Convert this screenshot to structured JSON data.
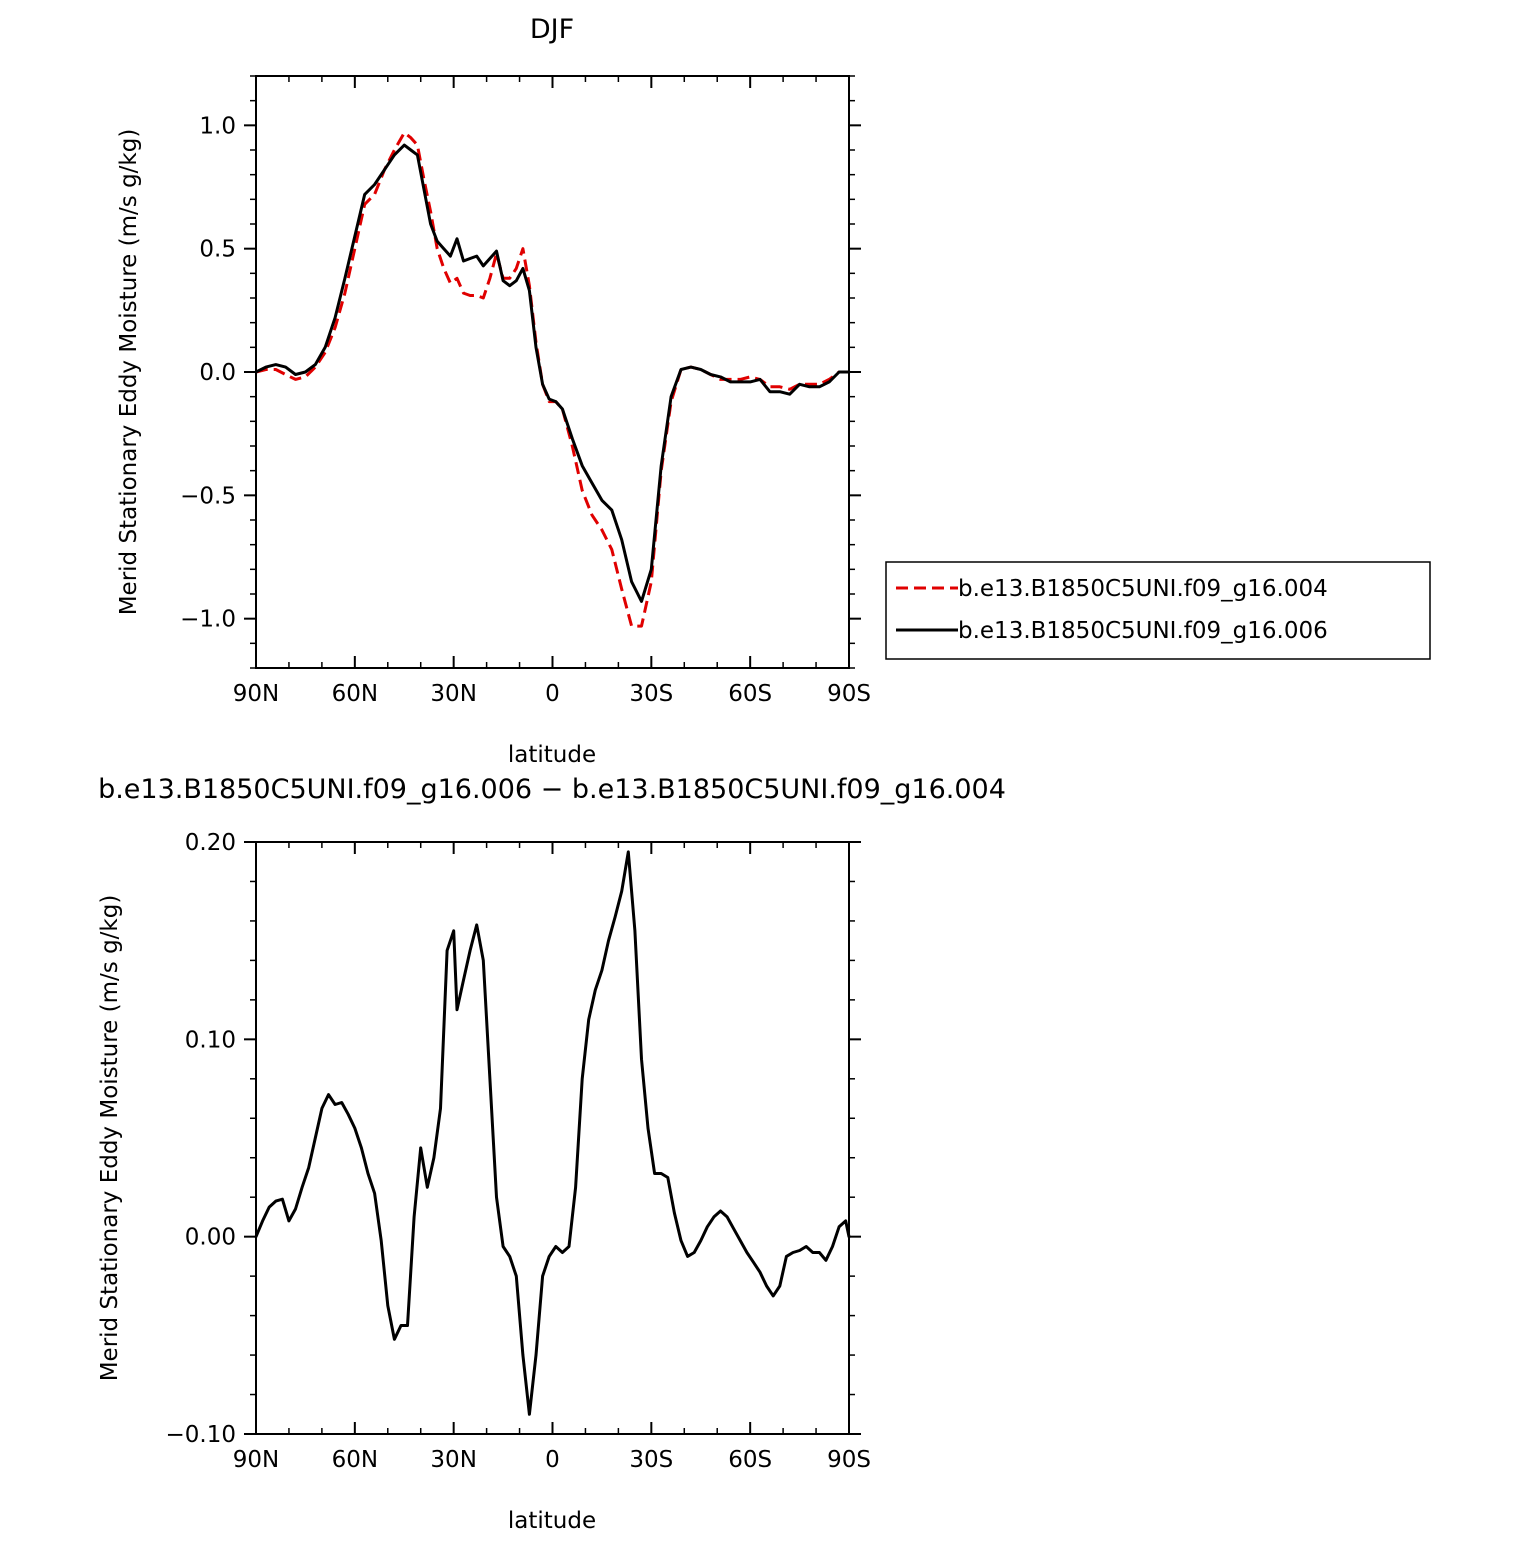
{
  "chart_data": [
    {
      "type": "line",
      "title": "DJF",
      "xlabel": "latitude",
      "ylabel": "Merid Stationary Eddy Moisture (m/s g/kg)",
      "xlim": [
        90,
        -90
      ],
      "ylim": [
        -1.2,
        1.2
      ],
      "x_ticks": [
        90,
        60,
        30,
        0,
        -30,
        -60,
        -90
      ],
      "x_tick_labels": [
        "90N",
        "60N",
        "30N",
        "0",
        "30S",
        "60S",
        "90S"
      ],
      "y_ticks": [
        1.0,
        0.5,
        0.0,
        -0.5,
        -1.0
      ],
      "y_tick_labels": [
        "1.0",
        "0.5",
        "0.0",
        "−0.5",
        "−1.0"
      ],
      "legend_position": "right",
      "series": [
        {
          "name": "b.e13.B1850C5UNI.f09_g16.004",
          "color": "#e00000",
          "dash": "dashed",
          "x": [
            90,
            87,
            84,
            81,
            78,
            75,
            72,
            69,
            66,
            63,
            60,
            57,
            54,
            51,
            48,
            45,
            43,
            41,
            39,
            37,
            35,
            33,
            31,
            29,
            27,
            25,
            23,
            21,
            19,
            17,
            15,
            13,
            11,
            9,
            7,
            5,
            3,
            1,
            -1,
            -3,
            -6,
            -9,
            -12,
            -15,
            -18,
            -21,
            -24,
            -27,
            -30,
            -33,
            -36,
            -39,
            -42,
            -45,
            -48,
            -51,
            -54,
            -57,
            -60,
            -63,
            -66,
            -69,
            -72,
            -75,
            -78,
            -81,
            -84,
            -87,
            -90
          ],
          "y": [
            0.0,
            0.01,
            0.01,
            -0.01,
            -0.03,
            -0.02,
            0.02,
            0.08,
            0.18,
            0.32,
            0.5,
            0.68,
            0.72,
            0.82,
            0.9,
            0.97,
            0.95,
            0.92,
            0.78,
            0.65,
            0.5,
            0.42,
            0.36,
            0.38,
            0.32,
            0.31,
            0.31,
            0.3,
            0.38,
            0.48,
            0.38,
            0.38,
            0.42,
            0.5,
            0.35,
            0.12,
            -0.05,
            -0.12,
            -0.12,
            -0.15,
            -0.3,
            -0.48,
            -0.58,
            -0.64,
            -0.72,
            -0.88,
            -1.03,
            -1.03,
            -0.85,
            -0.4,
            -0.12,
            0.01,
            0.02,
            0.01,
            -0.01,
            -0.03,
            -0.03,
            -0.03,
            -0.02,
            -0.03,
            -0.06,
            -0.06,
            -0.07,
            -0.05,
            -0.05,
            -0.05,
            -0.03,
            0.0,
            0.0
          ]
        },
        {
          "name": "b.e13.B1850C5UNI.f09_g16.006",
          "color": "#000000",
          "dash": "solid",
          "x": [
            90,
            87,
            84,
            81,
            78,
            75,
            72,
            69,
            66,
            63,
            60,
            57,
            54,
            51,
            48,
            45,
            43,
            41,
            39,
            37,
            35,
            33,
            31,
            29,
            27,
            25,
            23,
            21,
            19,
            17,
            15,
            13,
            11,
            9,
            7,
            5,
            3,
            1,
            -1,
            -3,
            -6,
            -9,
            -12,
            -15,
            -18,
            -21,
            -24,
            -27,
            -30,
            -33,
            -36,
            -39,
            -42,
            -45,
            -48,
            -51,
            -54,
            -57,
            -60,
            -63,
            -66,
            -69,
            -72,
            -75,
            -78,
            -81,
            -84,
            -87,
            -90
          ],
          "y": [
            0.0,
            0.02,
            0.03,
            0.02,
            -0.01,
            0.0,
            0.03,
            0.1,
            0.22,
            0.38,
            0.55,
            0.72,
            0.76,
            0.82,
            0.88,
            0.92,
            0.9,
            0.88,
            0.74,
            0.6,
            0.53,
            0.5,
            0.47,
            0.54,
            0.45,
            0.46,
            0.47,
            0.43,
            0.46,
            0.49,
            0.37,
            0.35,
            0.37,
            0.42,
            0.33,
            0.1,
            -0.05,
            -0.11,
            -0.12,
            -0.15,
            -0.27,
            -0.38,
            -0.45,
            -0.52,
            -0.56,
            -0.68,
            -0.85,
            -0.93,
            -0.8,
            -0.38,
            -0.1,
            0.01,
            0.02,
            0.01,
            -0.01,
            -0.02,
            -0.04,
            -0.04,
            -0.04,
            -0.03,
            -0.08,
            -0.08,
            -0.09,
            -0.05,
            -0.06,
            -0.06,
            -0.04,
            0.0,
            0.0
          ]
        }
      ]
    },
    {
      "type": "line",
      "title": "b.e13.B1850C5UNI.f09_g16.006 − b.e13.B1850C5UNI.f09_g16.004",
      "xlabel": "latitude",
      "ylabel": "Merid Stationary Eddy Moisture (m/s g/kg)",
      "xlim": [
        90,
        -90
      ],
      "ylim": [
        -0.1,
        0.2
      ],
      "x_ticks": [
        90,
        60,
        30,
        0,
        -30,
        -60,
        -90
      ],
      "x_tick_labels": [
        "90N",
        "60N",
        "30N",
        "0",
        "30S",
        "60S",
        "90S"
      ],
      "y_ticks": [
        0.2,
        0.1,
        0.0,
        -0.1
      ],
      "y_tick_labels": [
        "0.20",
        "0.10",
        "0.00",
        "−0.10"
      ],
      "series": [
        {
          "color": "#000000",
          "dash": "solid",
          "x": [
            90,
            88,
            86,
            84,
            82,
            80,
            78,
            76,
            74,
            72,
            70,
            68,
            66,
            64,
            62,
            60,
            58,
            56,
            54,
            52,
            50,
            48,
            46,
            44,
            42,
            40,
            38,
            36,
            34,
            32,
            30,
            29,
            27,
            25,
            23,
            21,
            19,
            17,
            15,
            13,
            11,
            9,
            7,
            5,
            3,
            1,
            -1,
            -3,
            -5,
            -7,
            -9,
            -11,
            -13,
            -15,
            -17,
            -19,
            -21,
            -23,
            -25,
            -27,
            -29,
            -31,
            -33,
            -35,
            -37,
            -39,
            -41,
            -43,
            -45,
            -47,
            -49,
            -51,
            -53,
            -55,
            -57,
            -59,
            -61,
            -63,
            -65,
            -67,
            -69,
            -71,
            -73,
            -75,
            -77,
            -79,
            -81,
            -83,
            -85,
            -87,
            -89,
            -90
          ],
          "y": [
            0.0,
            0.008,
            0.015,
            0.018,
            0.019,
            0.008,
            0.014,
            0.025,
            0.035,
            0.05,
            0.065,
            0.072,
            0.067,
            0.068,
            0.062,
            0.055,
            0.045,
            0.032,
            0.022,
            -0.002,
            -0.035,
            -0.052,
            -0.045,
            -0.045,
            0.01,
            0.045,
            0.025,
            0.04,
            0.065,
            0.145,
            0.155,
            0.115,
            0.13,
            0.145,
            0.158,
            0.14,
            0.08,
            0.02,
            -0.005,
            -0.01,
            -0.02,
            -0.06,
            -0.09,
            -0.06,
            -0.02,
            -0.01,
            -0.005,
            -0.008,
            -0.005,
            0.025,
            0.08,
            0.11,
            0.125,
            0.135,
            0.15,
            0.162,
            0.175,
            0.195,
            0.155,
            0.09,
            0.055,
            0.032,
            0.032,
            0.03,
            0.012,
            -0.002,
            -0.01,
            -0.008,
            -0.002,
            0.005,
            0.01,
            0.013,
            0.01,
            0.004,
            -0.002,
            -0.008,
            -0.013,
            -0.018,
            -0.025,
            -0.03,
            -0.025,
            -0.01,
            -0.008,
            -0.007,
            -0.005,
            -0.008,
            -0.008,
            -0.012,
            -0.005,
            0.005,
            0.008,
            0.0
          ]
        }
      ]
    }
  ]
}
